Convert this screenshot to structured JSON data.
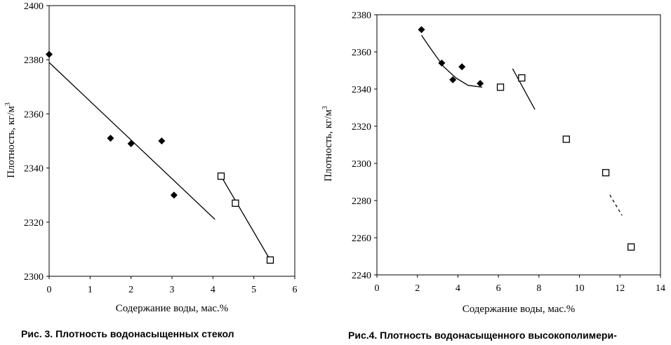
{
  "chart_data": [
    {
      "type": "scatter",
      "xlabel": "Содержание воды, мас.%",
      "ylabel": "Плотность, кг/м",
      "ylabel_sup": "3",
      "xlim": [
        0,
        6
      ],
      "ylim": [
        2300,
        2400
      ],
      "x_ticks": [
        "0",
        "1",
        "2",
        "3",
        "4",
        "5",
        "6"
      ],
      "y_ticks": [
        "2300",
        "2320",
        "2340",
        "2360",
        "2380",
        "2400"
      ],
      "grid": false,
      "caption": "Рис. 3. Плотность водонасыщенных стекол",
      "series": [
        {
          "marker": "diamond",
          "x": [
            0,
            1.5,
            2.0,
            2.75,
            3.05
          ],
          "y": [
            2382,
            2351,
            2349,
            2350,
            2330
          ]
        },
        {
          "marker": "square",
          "x": [
            4.2,
            4.55,
            5.4
          ],
          "y": [
            2337,
            2327,
            2306
          ]
        }
      ],
      "trendlines": [
        {
          "style": "solid",
          "x": [
            0,
            4.05
          ],
          "y": [
            2379,
            2321
          ]
        },
        {
          "style": "solid",
          "x": [
            4.2,
            5.4
          ],
          "y": [
            2337,
            2306
          ]
        }
      ]
    },
    {
      "type": "scatter",
      "xlabel": "Содержание воды, мас.%",
      "ylabel": "Плотность, кг/м",
      "ylabel_sup": "3",
      "xlim": [
        0,
        14
      ],
      "ylim": [
        2240,
        2380
      ],
      "x_ticks": [
        "0",
        "2",
        "4",
        "6",
        "8",
        "10",
        "12",
        "14"
      ],
      "y_ticks": [
        "2240",
        "2260",
        "2280",
        "2300",
        "2320",
        "2340",
        "2360",
        "2380"
      ],
      "grid": false,
      "caption": "Рис.4. Плотность водонасыщенного высокополимери-",
      "series": [
        {
          "marker": "diamond",
          "x": [
            2.2,
            3.2,
            3.75,
            4.2,
            5.1
          ],
          "y": [
            2372,
            2354,
            2345,
            2352,
            2343
          ]
        },
        {
          "marker": "square",
          "x": [
            6.1,
            7.15,
            9.35,
            11.3,
            12.55
          ],
          "y": [
            2341,
            2346,
            2313,
            2295,
            2255
          ]
        }
      ],
      "trendlines": [
        {
          "style": "solid",
          "x": [
            2.2,
            2.7,
            3.3,
            3.9,
            4.5,
            5.2
          ],
          "y": [
            2369,
            2361,
            2352,
            2346,
            2342,
            2341
          ]
        },
        {
          "style": "solid",
          "x": [
            6.7,
            7.8
          ],
          "y": [
            2351,
            2329
          ]
        },
        {
          "style": "dashed",
          "x": [
            11.5,
            12.1
          ],
          "y": [
            2283,
            2272
          ]
        }
      ]
    }
  ]
}
